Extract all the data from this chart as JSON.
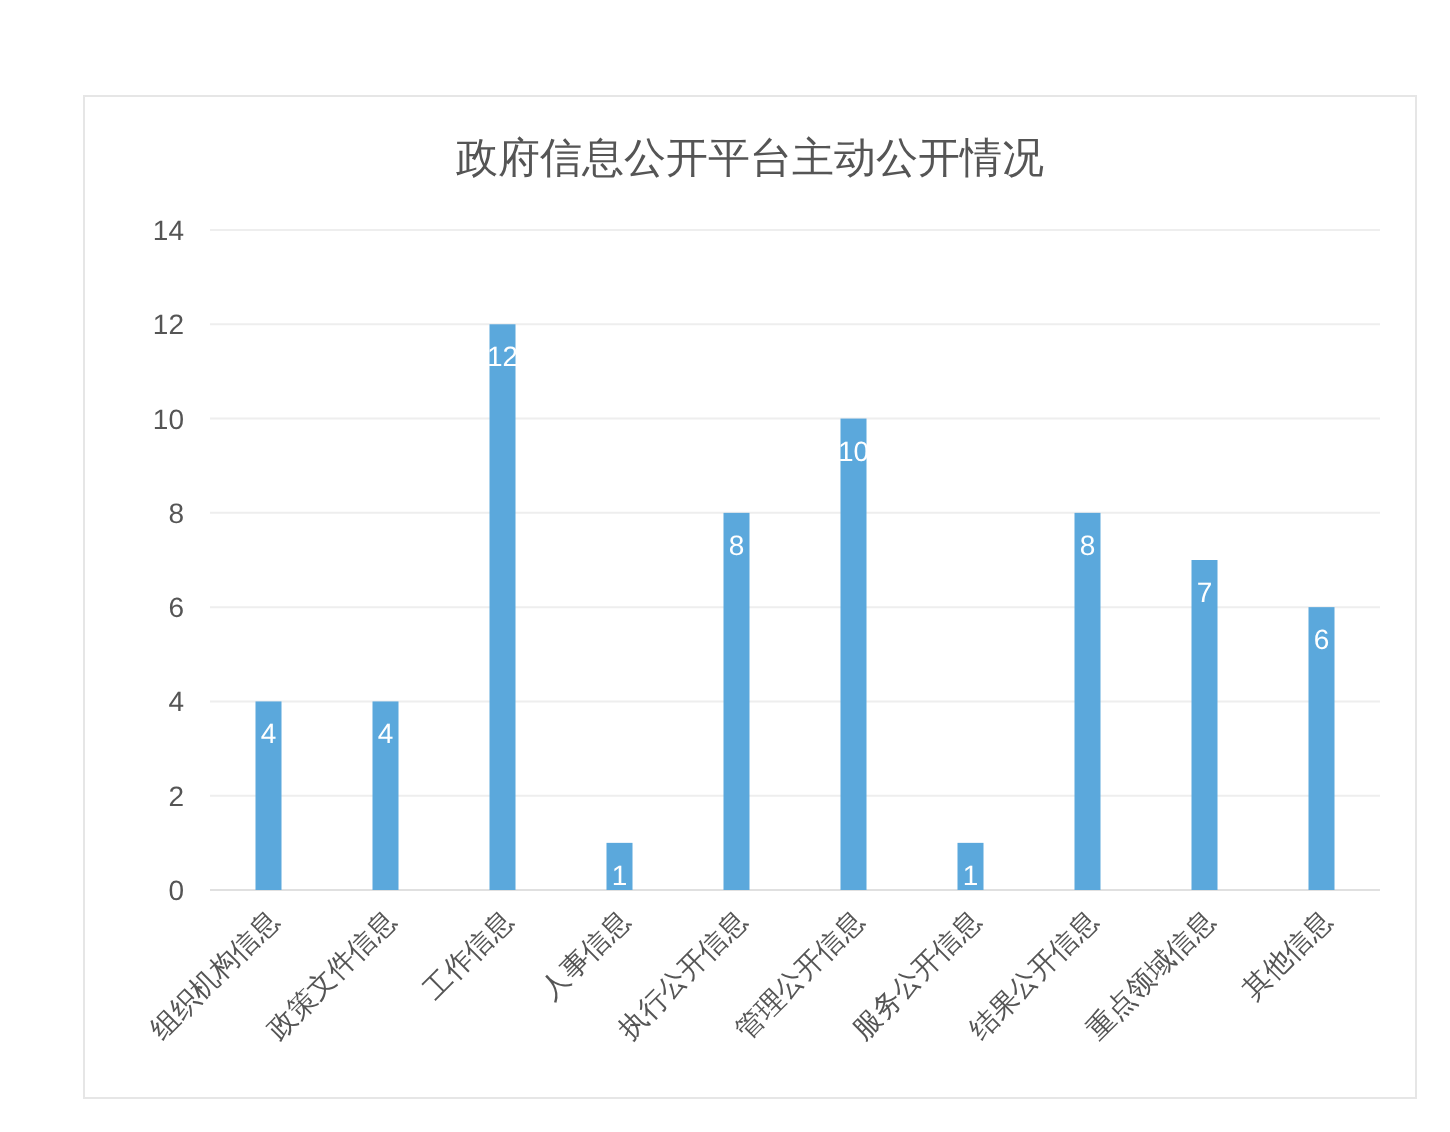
{
  "chart_data": {
    "type": "bar",
    "title": "政府信息公开平台主动公开情况",
    "categories": [
      "组织机构信息",
      "政策文件信息",
      "工作信息",
      "人事信息",
      "执行公开信息",
      "管理公开信息",
      "服务公开信息",
      "结果公开信息",
      "重点领域信息",
      "其他信息"
    ],
    "values": [
      4,
      4,
      12,
      1,
      8,
      10,
      1,
      8,
      7,
      6
    ],
    "color": "#5ba8dc",
    "ylim": [
      0,
      14
    ],
    "yticks": [
      0,
      2,
      4,
      6,
      8,
      10,
      12,
      14
    ],
    "grid": "y",
    "data_labels": true
  }
}
